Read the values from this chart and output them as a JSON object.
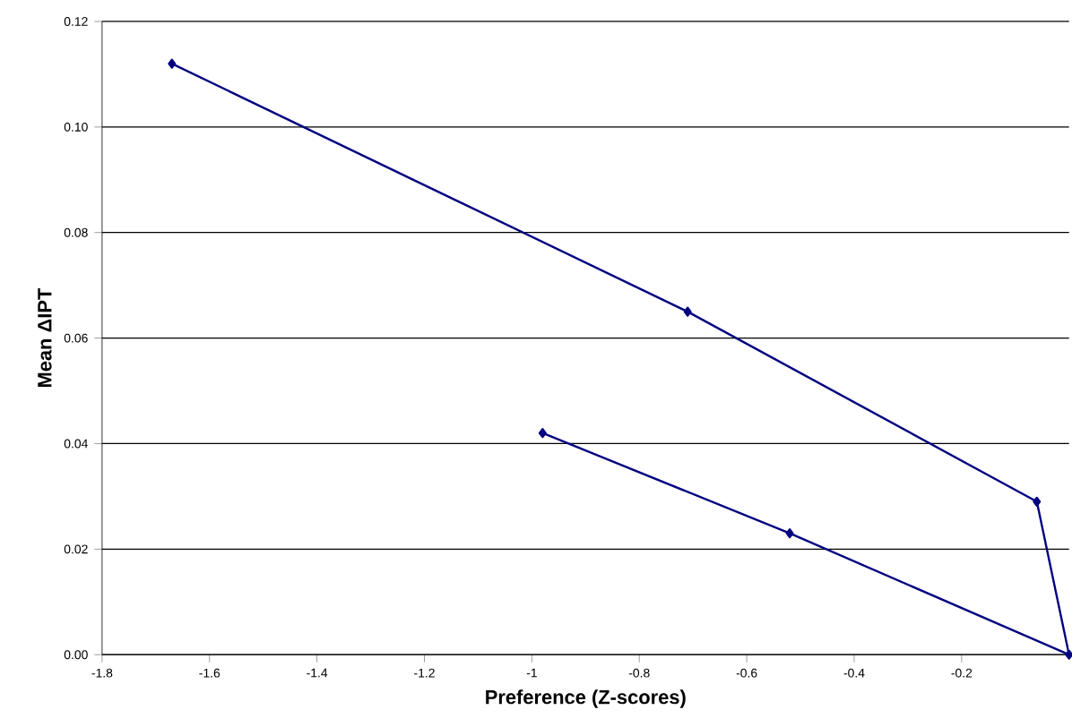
{
  "chart_data": {
    "type": "line",
    "xlabel": "Preference (Z-scores)",
    "ylabel": "Mean ΔIPT",
    "x": [
      -1.67,
      -0.71,
      -0.06,
      0,
      -0.52,
      -0.98
    ],
    "series": [
      {
        "color": "#000080",
        "values": [
          0.112,
          0.065,
          0.029,
          0.0,
          0.023,
          0.042
        ]
      }
    ],
    "xlim": [
      -1.8,
      0
    ],
    "ylim": [
      0,
      0.12
    ],
    "xticks": [
      -1.8,
      -1.6,
      -1.4,
      -1.2,
      -1,
      -0.8,
      -0.6,
      -0.4,
      -0.2
    ],
    "yticks": [
      {
        "value": 0,
        "label": "0.00"
      },
      {
        "value": 0.02,
        "label": "0.02"
      },
      {
        "value": 0.04,
        "label": "0.04"
      },
      {
        "value": 0.06,
        "label": "0.06"
      },
      {
        "value": 0.08,
        "label": "0.08"
      },
      {
        "value": 0.1,
        "label": "0.10"
      },
      {
        "value": 0.12,
        "label": "0.12"
      }
    ],
    "grid": "y",
    "marker": "diamond",
    "line_style": "solid"
  }
}
